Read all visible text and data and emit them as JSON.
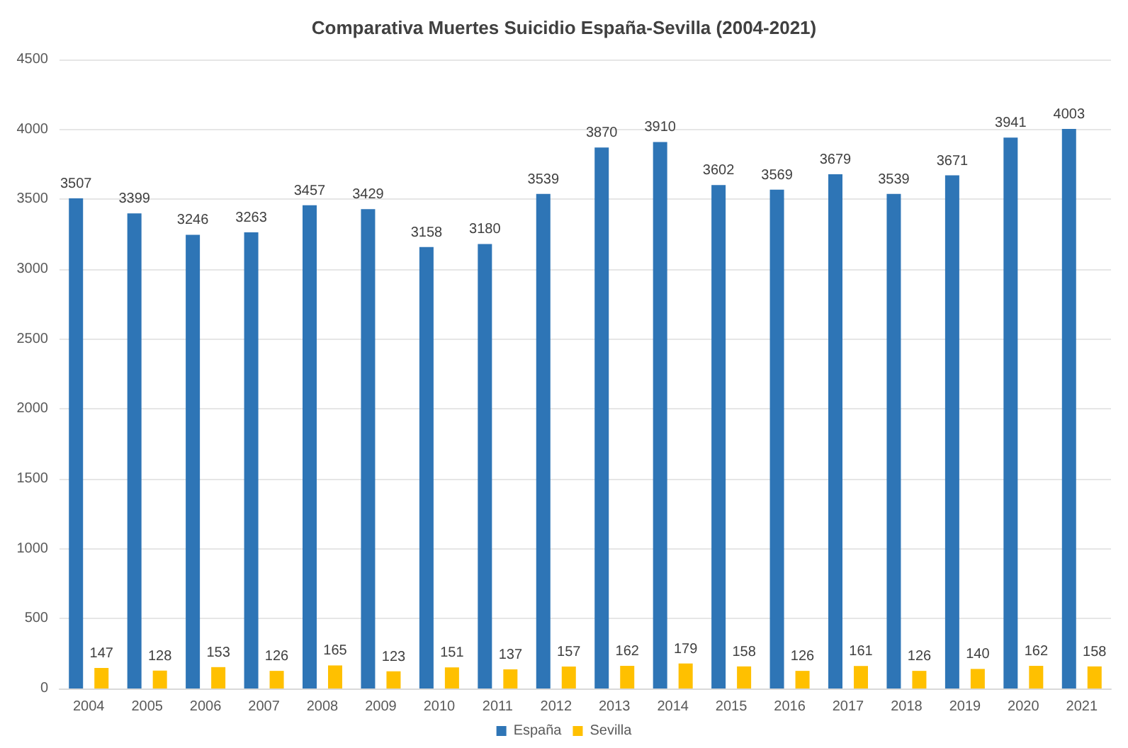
{
  "chart_data": {
    "type": "bar",
    "title": "Comparativa Muertes Suicidio España-Sevilla (2004-2021)",
    "categories": [
      "2004",
      "2005",
      "2006",
      "2007",
      "2008",
      "2009",
      "2010",
      "2011",
      "2012",
      "2013",
      "2014",
      "2015",
      "2016",
      "2017",
      "2018",
      "2019",
      "2020",
      "2021"
    ],
    "series": [
      {
        "name": "España",
        "color": "#2e75b6",
        "values": [
          3507,
          3399,
          3246,
          3263,
          3457,
          3429,
          3158,
          3180,
          3539,
          3870,
          3910,
          3602,
          3569,
          3679,
          3539,
          3671,
          3941,
          4003
        ]
      },
      {
        "name": "Sevilla",
        "color": "#ffc000",
        "values": [
          147,
          128,
          153,
          126,
          165,
          123,
          151,
          137,
          157,
          162,
          179,
          158,
          126,
          161,
          126,
          140,
          162,
          158
        ]
      }
    ],
    "ylim": [
      0,
      4500
    ],
    "yticks": [
      0,
      500,
      1000,
      1500,
      2000,
      2500,
      3000,
      3500,
      4000,
      4500
    ],
    "grid": "y",
    "legend": "bottom",
    "data_labels": true
  }
}
